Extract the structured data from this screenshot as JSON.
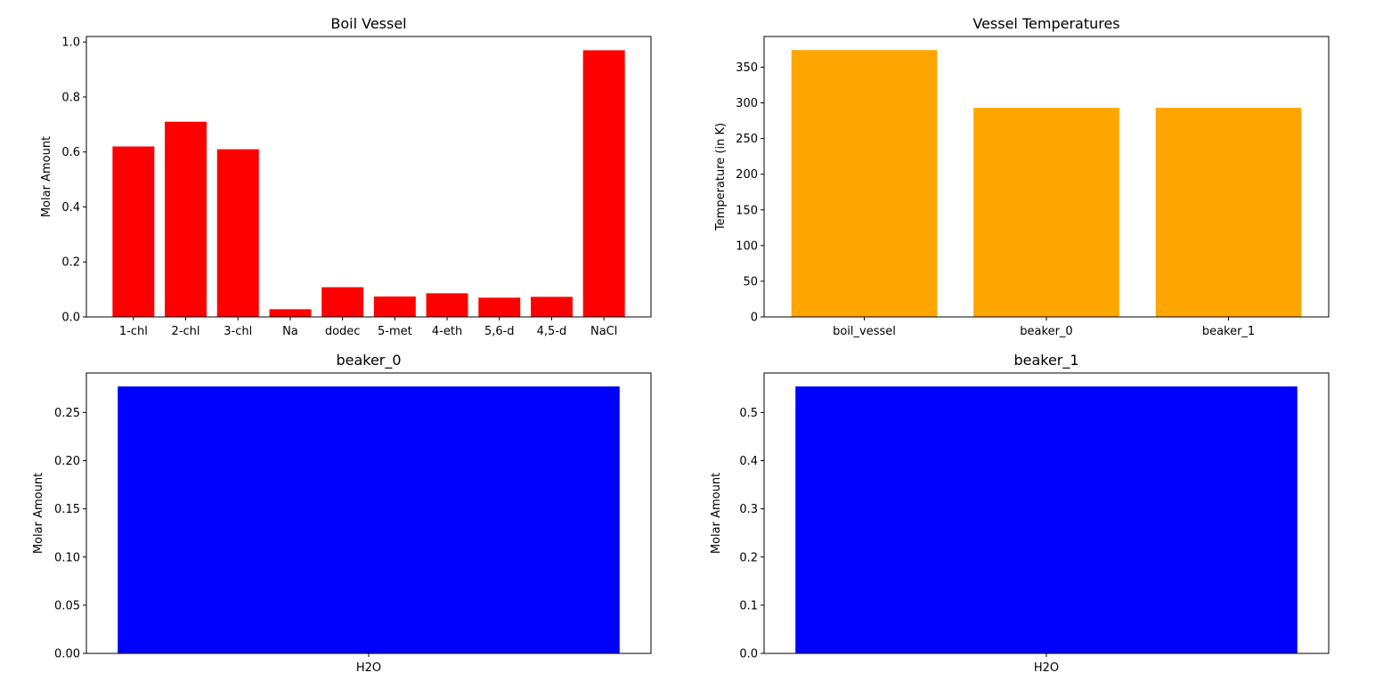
{
  "chart_data": [
    {
      "type": "bar",
      "title": "Boil Vessel",
      "xlabel": "",
      "ylabel": "Molar Amount",
      "categories": [
        "1-chl",
        "2-chl",
        "3-chl",
        "Na",
        "dodec",
        "5-met",
        "4-eth",
        "5,6-d",
        "4,5-d",
        "NaCl"
      ],
      "values": [
        0.62,
        0.71,
        0.61,
        0.028,
        0.108,
        0.074,
        0.086,
        0.07,
        0.073,
        0.97
      ],
      "ylim": [
        0,
        1.02
      ],
      "yticks": [
        0.0,
        0.2,
        0.4,
        0.6,
        0.8,
        1.0
      ],
      "ytick_labels": [
        "0.0",
        "0.2",
        "0.4",
        "0.6",
        "0.8",
        "1.0"
      ],
      "color": "#ff0000",
      "grid": false
    },
    {
      "type": "bar",
      "title": "Vessel Temperatures",
      "xlabel": "",
      "ylabel": "Temperature (in K)",
      "categories": [
        "boil_vessel",
        "beaker_0",
        "beaker_1"
      ],
      "values": [
        374,
        293,
        293
      ],
      "ylim": [
        0,
        393
      ],
      "yticks": [
        0,
        50,
        100,
        150,
        200,
        250,
        300,
        350
      ],
      "ytick_labels": [
        "0",
        "50",
        "100",
        "150",
        "200",
        "250",
        "300",
        "350"
      ],
      "color": "#ffa500",
      "grid": false
    },
    {
      "type": "bar",
      "title": "beaker_0",
      "xlabel": "",
      "ylabel": "Molar Amount",
      "categories": [
        "H2O"
      ],
      "values": [
        0.277
      ],
      "ylim": [
        0,
        0.291
      ],
      "yticks": [
        0.0,
        0.05,
        0.1,
        0.15,
        0.2,
        0.25
      ],
      "ytick_labels": [
        "0.00",
        "0.05",
        "0.10",
        "0.15",
        "0.20",
        "0.25"
      ],
      "color": "#0000ff",
      "grid": false
    },
    {
      "type": "bar",
      "title": "beaker_1",
      "xlabel": "",
      "ylabel": "Molar Amount",
      "categories": [
        "H2O"
      ],
      "values": [
        0.554
      ],
      "ylim": [
        0,
        0.582
      ],
      "yticks": [
        0.0,
        0.1,
        0.2,
        0.3,
        0.4,
        0.5
      ],
      "ytick_labels": [
        "0.0",
        "0.1",
        "0.2",
        "0.3",
        "0.4",
        "0.5"
      ],
      "color": "#0000ff",
      "grid": false
    }
  ]
}
